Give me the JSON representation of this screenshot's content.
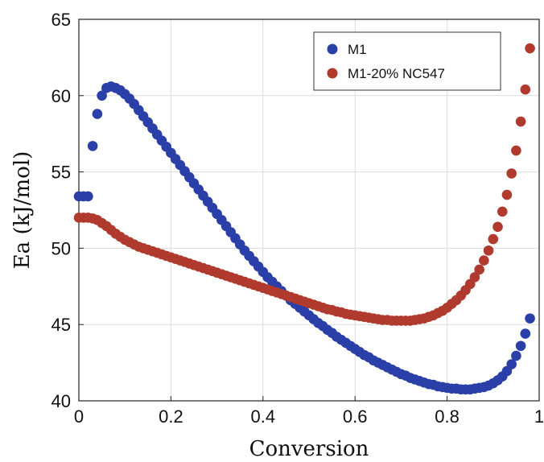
{
  "chart_data": {
    "type": "scatter",
    "xlabel": "Conversion",
    "ylabel": "Ea (kJ/mol)",
    "xlim": [
      0,
      1
    ],
    "ylim": [
      40,
      65
    ],
    "xticks": [
      "0",
      "0.2",
      "0.4",
      "0.6",
      "0.8",
      "1"
    ],
    "yticks": [
      "40",
      "45",
      "50",
      "55",
      "60",
      "65"
    ],
    "grid": true,
    "legend": "top-right",
    "series": [
      {
        "name": "M1",
        "color": "#2b3fa8",
        "points": [
          [
            0.0,
            53.4
          ],
          [
            0.01,
            53.4
          ],
          [
            0.02,
            53.4
          ],
          [
            0.03,
            56.7
          ],
          [
            0.04,
            58.8
          ],
          [
            0.05,
            60.0
          ],
          [
            0.06,
            60.5
          ],
          [
            0.07,
            60.6
          ],
          [
            0.08,
            60.5
          ],
          [
            0.09,
            60.35
          ],
          [
            0.1,
            60.1
          ],
          [
            0.11,
            59.8
          ],
          [
            0.12,
            59.45
          ],
          [
            0.13,
            59.05
          ],
          [
            0.14,
            58.65
          ],
          [
            0.15,
            58.25
          ],
          [
            0.16,
            57.85
          ],
          [
            0.17,
            57.45
          ],
          [
            0.18,
            57.05
          ],
          [
            0.19,
            56.65
          ],
          [
            0.2,
            56.25
          ],
          [
            0.21,
            55.85
          ],
          [
            0.22,
            55.45
          ],
          [
            0.23,
            55.05
          ],
          [
            0.24,
            54.65
          ],
          [
            0.25,
            54.25
          ],
          [
            0.26,
            53.85
          ],
          [
            0.27,
            53.45
          ],
          [
            0.28,
            53.05
          ],
          [
            0.29,
            52.65
          ],
          [
            0.3,
            52.25
          ],
          [
            0.31,
            51.85
          ],
          [
            0.32,
            51.45
          ],
          [
            0.33,
            51.05
          ],
          [
            0.34,
            50.65
          ],
          [
            0.35,
            50.25
          ],
          [
            0.36,
            49.85
          ],
          [
            0.37,
            49.5
          ],
          [
            0.38,
            49.15
          ],
          [
            0.39,
            48.8
          ],
          [
            0.4,
            48.45
          ],
          [
            0.41,
            48.1
          ],
          [
            0.42,
            47.8
          ],
          [
            0.43,
            47.5
          ],
          [
            0.44,
            47.2
          ],
          [
            0.45,
            46.9
          ],
          [
            0.46,
            46.6
          ],
          [
            0.47,
            46.35
          ],
          [
            0.48,
            46.1
          ],
          [
            0.49,
            45.85
          ],
          [
            0.5,
            45.6
          ],
          [
            0.51,
            45.35
          ],
          [
            0.52,
            45.1
          ],
          [
            0.53,
            44.9
          ],
          [
            0.54,
            44.65
          ],
          [
            0.55,
            44.45
          ],
          [
            0.56,
            44.2
          ],
          [
            0.57,
            44.0
          ],
          [
            0.58,
            43.8
          ],
          [
            0.59,
            43.6
          ],
          [
            0.6,
            43.4
          ],
          [
            0.61,
            43.2
          ],
          [
            0.62,
            43.0
          ],
          [
            0.63,
            42.85
          ],
          [
            0.64,
            42.65
          ],
          [
            0.65,
            42.5
          ],
          [
            0.66,
            42.35
          ],
          [
            0.67,
            42.2
          ],
          [
            0.68,
            42.05
          ],
          [
            0.69,
            41.9
          ],
          [
            0.7,
            41.75
          ],
          [
            0.71,
            41.65
          ],
          [
            0.72,
            41.5
          ],
          [
            0.73,
            41.4
          ],
          [
            0.74,
            41.3
          ],
          [
            0.75,
            41.2
          ],
          [
            0.76,
            41.1
          ],
          [
            0.77,
            41.05
          ],
          [
            0.78,
            40.95
          ],
          [
            0.79,
            40.9
          ],
          [
            0.8,
            40.85
          ],
          [
            0.81,
            40.8
          ],
          [
            0.82,
            40.8
          ],
          [
            0.83,
            40.75
          ],
          [
            0.84,
            40.75
          ],
          [
            0.85,
            40.75
          ],
          [
            0.86,
            40.8
          ],
          [
            0.87,
            40.85
          ],
          [
            0.88,
            40.9
          ],
          [
            0.89,
            41.0
          ],
          [
            0.9,
            41.15
          ],
          [
            0.91,
            41.35
          ],
          [
            0.92,
            41.6
          ],
          [
            0.93,
            41.95
          ],
          [
            0.94,
            42.4
          ],
          [
            0.95,
            42.95
          ],
          [
            0.96,
            43.6
          ],
          [
            0.97,
            44.4
          ],
          [
            0.98,
            45.4
          ]
        ]
      },
      {
        "name": "M1-20% NC547",
        "color": "#b03a2e",
        "points": [
          [
            0.0,
            52.0
          ],
          [
            0.01,
            52.0
          ],
          [
            0.02,
            52.0
          ],
          [
            0.03,
            51.95
          ],
          [
            0.04,
            51.85
          ],
          [
            0.05,
            51.65
          ],
          [
            0.06,
            51.45
          ],
          [
            0.07,
            51.2
          ],
          [
            0.08,
            50.95
          ],
          [
            0.09,
            50.75
          ],
          [
            0.1,
            50.55
          ],
          [
            0.11,
            50.4
          ],
          [
            0.12,
            50.25
          ],
          [
            0.13,
            50.1
          ],
          [
            0.14,
            50.0
          ],
          [
            0.15,
            49.9
          ],
          [
            0.16,
            49.8
          ],
          [
            0.17,
            49.7
          ],
          [
            0.18,
            49.6
          ],
          [
            0.19,
            49.5
          ],
          [
            0.2,
            49.4
          ],
          [
            0.21,
            49.3
          ],
          [
            0.22,
            49.2
          ],
          [
            0.23,
            49.1
          ],
          [
            0.24,
            49.0
          ],
          [
            0.25,
            48.9
          ],
          [
            0.26,
            48.8
          ],
          [
            0.27,
            48.7
          ],
          [
            0.28,
            48.6
          ],
          [
            0.29,
            48.5
          ],
          [
            0.3,
            48.4
          ],
          [
            0.31,
            48.3
          ],
          [
            0.32,
            48.2
          ],
          [
            0.33,
            48.1
          ],
          [
            0.34,
            48.0
          ],
          [
            0.35,
            47.9
          ],
          [
            0.36,
            47.8
          ],
          [
            0.37,
            47.7
          ],
          [
            0.38,
            47.6
          ],
          [
            0.39,
            47.5
          ],
          [
            0.4,
            47.4
          ],
          [
            0.41,
            47.3
          ],
          [
            0.42,
            47.2
          ],
          [
            0.43,
            47.1
          ],
          [
            0.44,
            47.0
          ],
          [
            0.45,
            46.9
          ],
          [
            0.46,
            46.8
          ],
          [
            0.47,
            46.7
          ],
          [
            0.48,
            46.6
          ],
          [
            0.49,
            46.5
          ],
          [
            0.5,
            46.4
          ],
          [
            0.51,
            46.3
          ],
          [
            0.52,
            46.2
          ],
          [
            0.53,
            46.1
          ],
          [
            0.54,
            46.0
          ],
          [
            0.55,
            45.95
          ],
          [
            0.56,
            45.85
          ],
          [
            0.57,
            45.8
          ],
          [
            0.58,
            45.7
          ],
          [
            0.59,
            45.65
          ],
          [
            0.6,
            45.6
          ],
          [
            0.61,
            45.55
          ],
          [
            0.62,
            45.5
          ],
          [
            0.63,
            45.45
          ],
          [
            0.64,
            45.4
          ],
          [
            0.65,
            45.35
          ],
          [
            0.66,
            45.3
          ],
          [
            0.67,
            45.3
          ],
          [
            0.68,
            45.25
          ],
          [
            0.69,
            45.25
          ],
          [
            0.7,
            45.25
          ],
          [
            0.71,
            45.25
          ],
          [
            0.72,
            45.25
          ],
          [
            0.73,
            45.3
          ],
          [
            0.74,
            45.35
          ],
          [
            0.75,
            45.4
          ],
          [
            0.76,
            45.5
          ],
          [
            0.77,
            45.6
          ],
          [
            0.78,
            45.75
          ],
          [
            0.79,
            45.9
          ],
          [
            0.8,
            46.1
          ],
          [
            0.81,
            46.35
          ],
          [
            0.82,
            46.6
          ],
          [
            0.83,
            46.9
          ],
          [
            0.84,
            47.25
          ],
          [
            0.85,
            47.65
          ],
          [
            0.86,
            48.1
          ],
          [
            0.87,
            48.6
          ],
          [
            0.88,
            49.2
          ],
          [
            0.89,
            49.85
          ],
          [
            0.9,
            50.6
          ],
          [
            0.91,
            51.4
          ],
          [
            0.92,
            52.4
          ],
          [
            0.93,
            53.5
          ],
          [
            0.94,
            54.9
          ],
          [
            0.95,
            56.4
          ],
          [
            0.96,
            58.3
          ],
          [
            0.97,
            60.4
          ],
          [
            0.98,
            63.1
          ]
        ]
      }
    ]
  }
}
